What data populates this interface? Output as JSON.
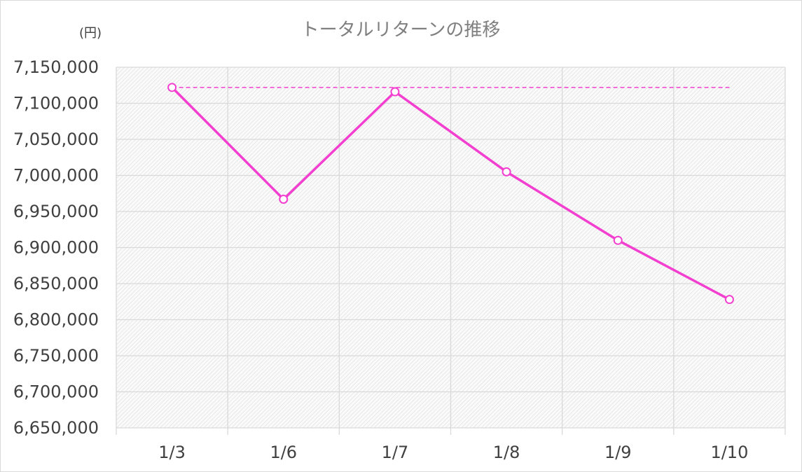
{
  "chart_data": {
    "type": "line",
    "title": "トータルリターンの推移",
    "unit_label": "(円)",
    "xlabel": "",
    "ylabel": "",
    "categories": [
      "1/3",
      "1/6",
      "1/7",
      "1/8",
      "1/9",
      "1/10"
    ],
    "series": [
      {
        "values": [
          7122000,
          6967000,
          7116000,
          7005000,
          6910000,
          6828000
        ],
        "color": "#f23fd0",
        "marker": "open-circle"
      }
    ],
    "reference_line": {
      "value": 7122000,
      "style": "dashed",
      "color": "#f23fd0"
    },
    "ylim": [
      6650000,
      7150000
    ],
    "ytick_step": 50000,
    "yticks": [
      "6,650,000",
      "6,700,000",
      "6,750,000",
      "6,800,000",
      "6,850,000",
      "6,900,000",
      "6,950,000",
      "7,000,000",
      "7,050,000",
      "7,100,000",
      "7,150,000"
    ],
    "grid": true,
    "legend": "none",
    "plot_fill": "hatched-light-gray"
  }
}
